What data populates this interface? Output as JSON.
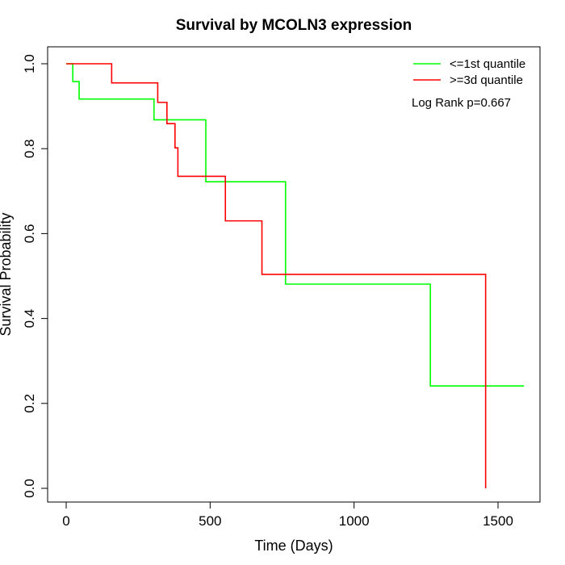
{
  "chart_data": {
    "type": "line",
    "title": "Survival by MCOLN3 expression",
    "xlabel": "Time (Days)",
    "ylabel": "Survival Probability",
    "xlim": [
      0,
      1590
    ],
    "ylim": [
      0,
      1
    ],
    "x_ticks": [
      0,
      500,
      1000,
      1500
    ],
    "y_ticks": [
      0.0,
      0.2,
      0.4,
      0.6,
      0.8,
      1.0
    ],
    "x_tick_labels": [
      "0",
      "500",
      "1000",
      "1500"
    ],
    "y_tick_labels": [
      "0.0",
      "0.2",
      "0.4",
      "0.6",
      "0.8",
      "1.0"
    ],
    "annotation": "Log Rank p=0.667",
    "legend_position": "top-right",
    "series": [
      {
        "name": "<=1st quantile",
        "color": "#00ff00",
        "step_points": [
          [
            0,
            1.0
          ],
          [
            23,
            0.958
          ],
          [
            45,
            0.917
          ],
          [
            305,
            0.868
          ],
          [
            485,
            0.722
          ],
          [
            762,
            0.481
          ],
          [
            1265,
            0.241
          ],
          [
            1590,
            0.241
          ]
        ]
      },
      {
        "name": ">=3d quantile",
        "color": "#ff0000",
        "step_points": [
          [
            0,
            1.0
          ],
          [
            158,
            0.955
          ],
          [
            318,
            0.909
          ],
          [
            350,
            0.859
          ],
          [
            378,
            0.802
          ],
          [
            388,
            0.735
          ],
          [
            553,
            0.63
          ],
          [
            680,
            0.504
          ],
          [
            1457,
            0.0
          ]
        ]
      }
    ]
  }
}
